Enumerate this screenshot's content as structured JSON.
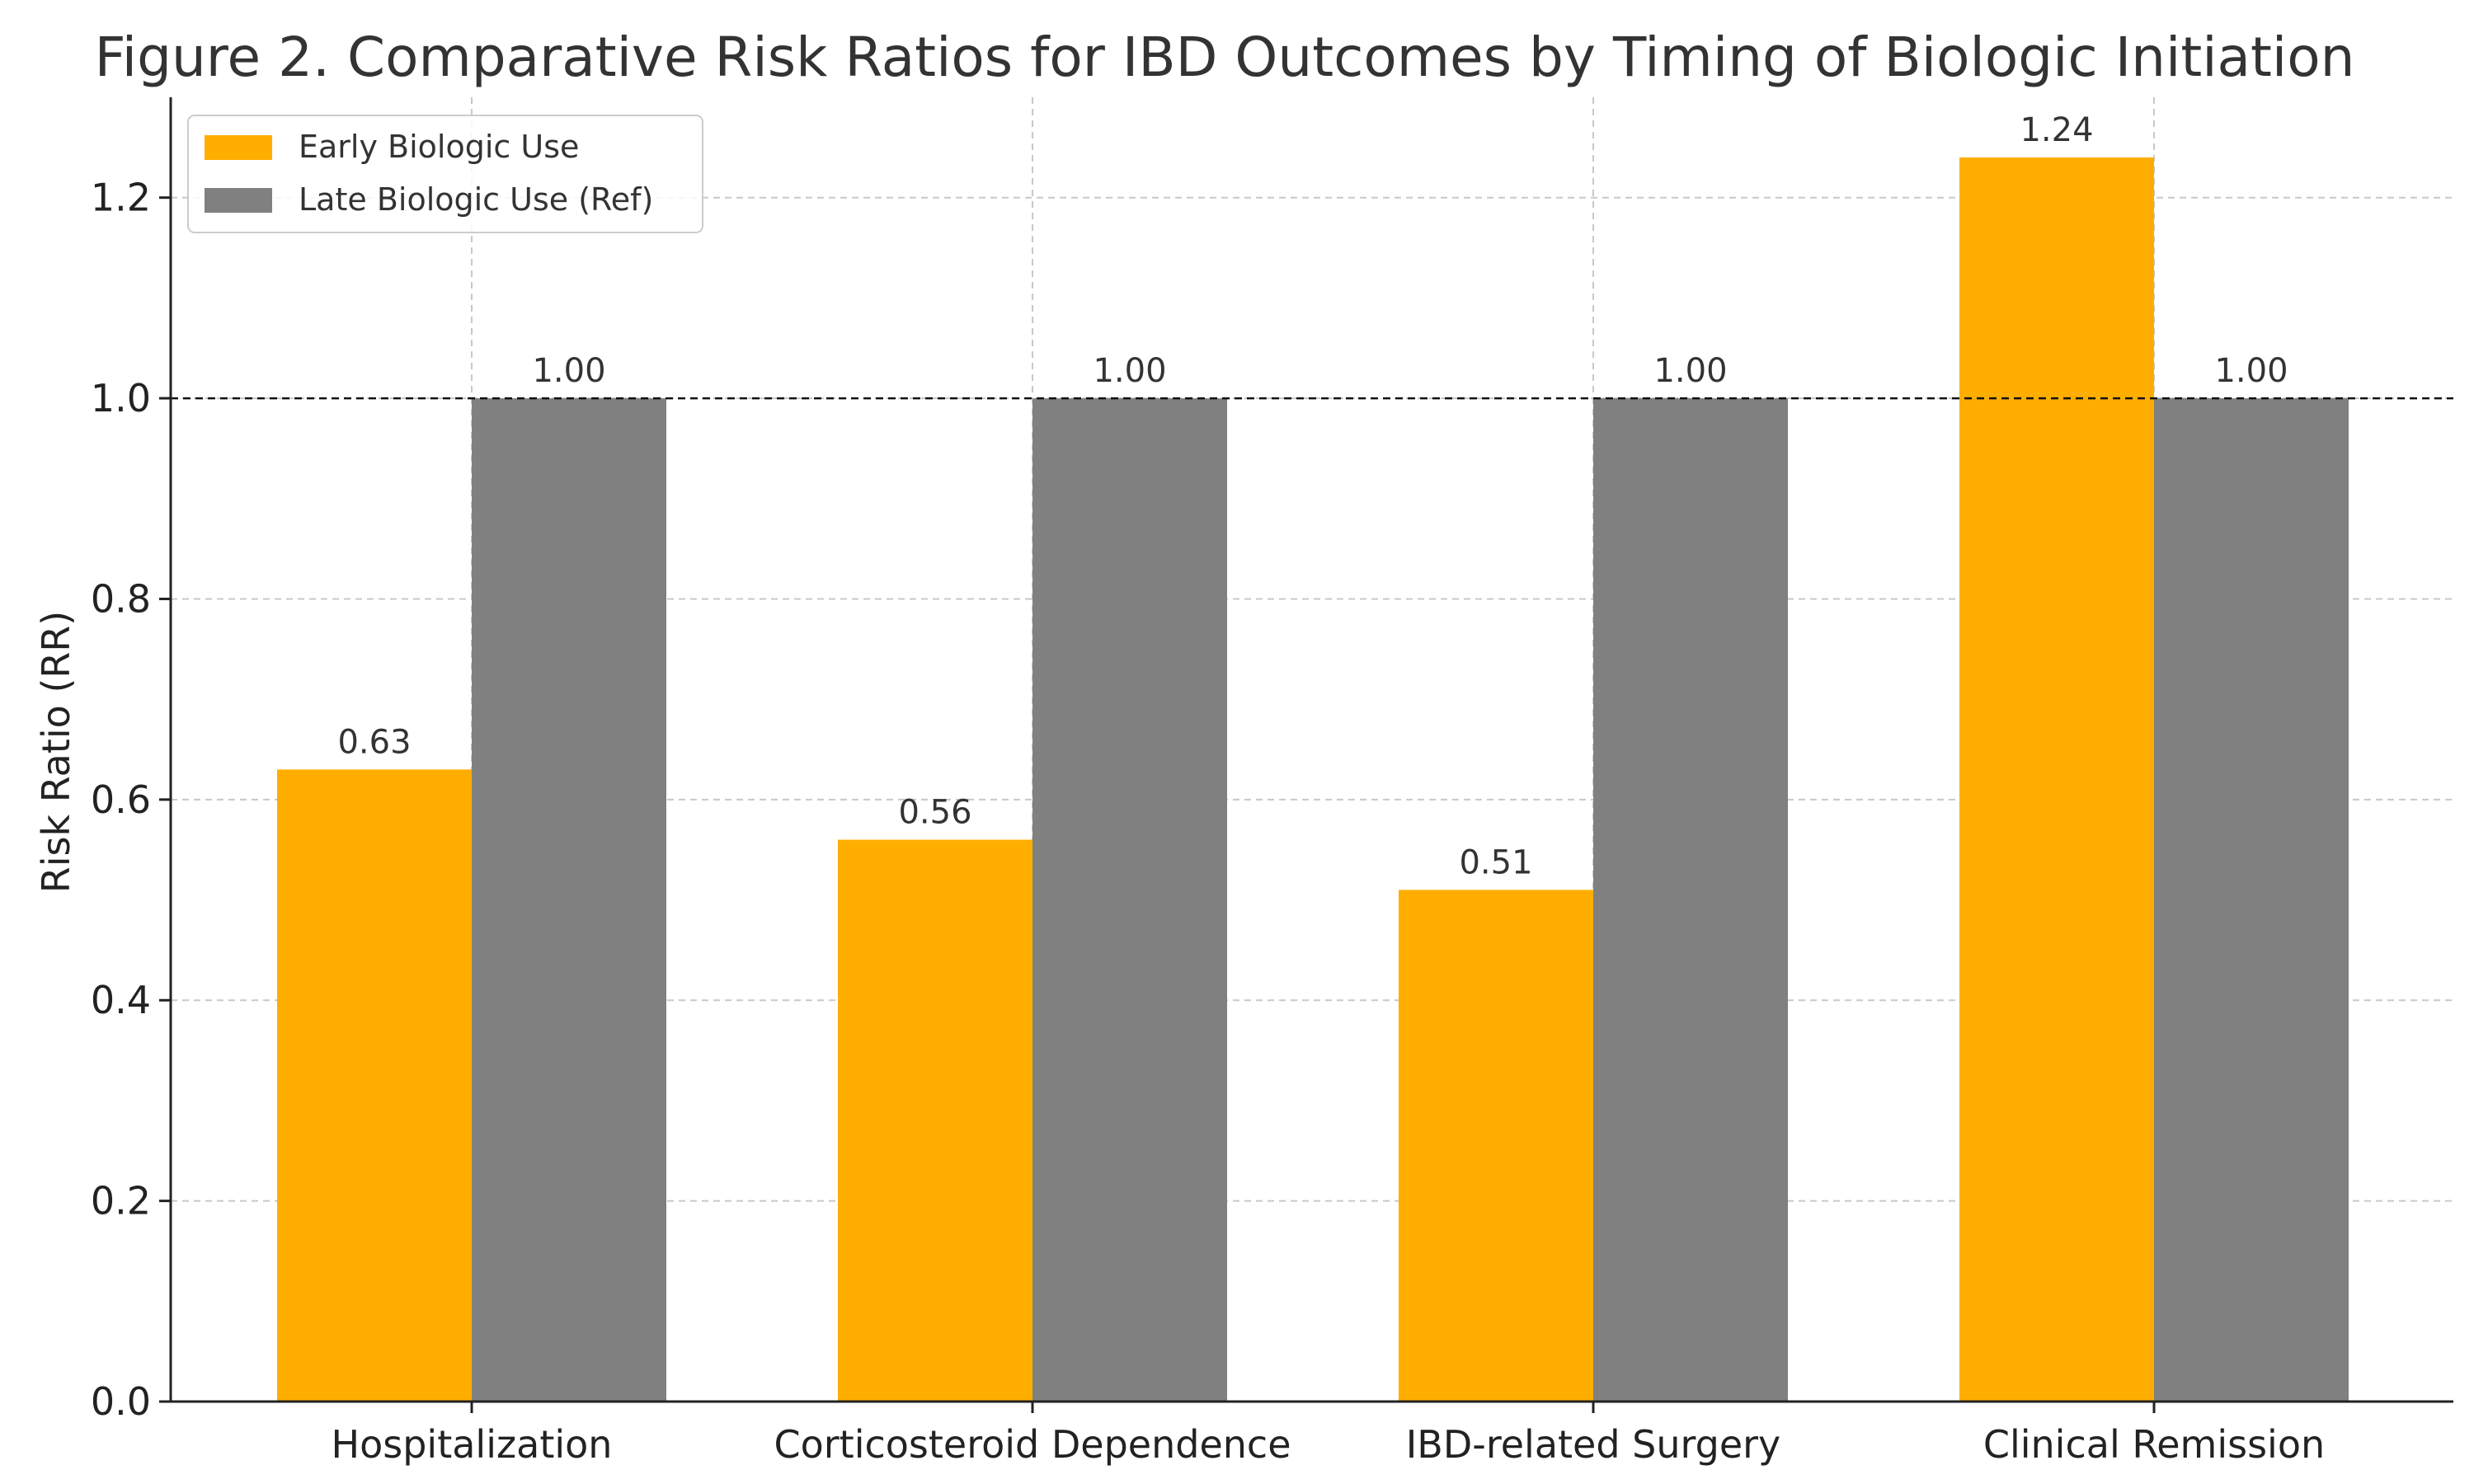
{
  "chart_data": {
    "type": "bar",
    "title": "Figure 2. Comparative Risk Ratios for IBD Outcomes by Timing of Biologic Initiation",
    "xlabel": "",
    "ylabel": "Risk Ratio (RR)",
    "ylim": [
      0,
      1.3
    ],
    "yticks": [
      "0.0",
      "0.2",
      "0.4",
      "0.6",
      "0.8",
      "1.0",
      "1.2"
    ],
    "categories": [
      "Hospitalization",
      "Corticosteroid Dependence",
      "IBD-related Surgery",
      "Clinical Remission"
    ],
    "series": [
      {
        "name": "Early Biologic Use",
        "color": "#FFAE00",
        "values": [
          0.63,
          0.56,
          0.51,
          1.24
        ],
        "labels": [
          "0.63",
          "0.56",
          "0.51",
          "1.24"
        ]
      },
      {
        "name": "Late Biologic Use (Ref)",
        "color": "#808080",
        "values": [
          1.0,
          1.0,
          1.0,
          1.0
        ],
        "labels": [
          "1.00",
          "1.00",
          "1.00",
          "1.00"
        ]
      }
    ],
    "reference_line": 1.0,
    "grid": true,
    "legend_position": "top-left"
  }
}
